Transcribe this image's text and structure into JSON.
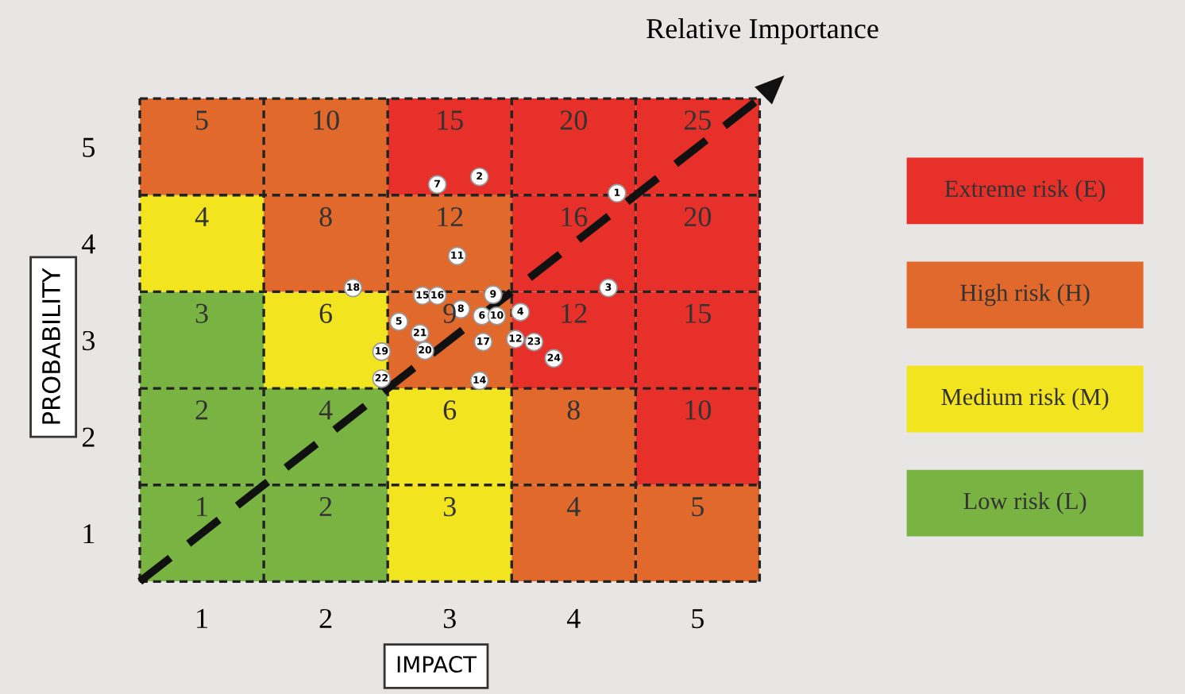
{
  "chart_data": [
    {
      "type": "heatmap",
      "xlabel": "IMPACT",
      "ylabel": "PROBABILITY",
      "categories": [
        "1",
        "2",
        "3",
        "4",
        "5"
      ],
      "y_categories": [
        "5",
        "4",
        "3",
        "2",
        "1"
      ],
      "data_labels": true,
      "grid": false,
      "tick_labels": false,
      "cells": [
        [
          5,
          10,
          15,
          20,
          25
        ],
        [
          4,
          8,
          12,
          16,
          20
        ],
        [
          3,
          6,
          9,
          12,
          15
        ],
        [
          2,
          4,
          6,
          8,
          10
        ],
        [
          1,
          2,
          3,
          4,
          5
        ]
      ],
      "colors": [
        [
          "#e2692c",
          "#e2692c",
          "#e8302a",
          "#e8302a",
          "#e8302a"
        ],
        [
          "#f2e41e",
          "#e2692c",
          "#e2692c",
          "#e8302a",
          "#e8302a"
        ],
        [
          "#79b443",
          "#f2e41e",
          "#e2692c",
          "#e8302a",
          "#e8302a"
        ],
        [
          "#79b443",
          "#79b443",
          "#f2e41e",
          "#e2692c",
          "#e8302a"
        ],
        [
          "#79b443",
          "#79b443",
          "#f2e41e",
          "#e2692c",
          "#e2692c"
        ]
      ]
    },
    {
      "type": "scatter",
      "xlim": [
        0.5,
        5.5
      ],
      "ylim": [
        0.5,
        5.5
      ],
      "xticks": [
        1,
        2,
        3,
        4,
        5
      ],
      "yticks": [
        1,
        2,
        3,
        4,
        5
      ],
      "annotations": [
        "Relative Importance",
        {
          "text": "7",
          "x": 2.9,
          "y": 4.61
        },
        {
          "text": "2",
          "x": 3.24,
          "y": 4.69
        },
        {
          "text": "1",
          "x": 4.35,
          "y": 4.52
        },
        {
          "text": "11",
          "x": 3.06,
          "y": 3.87
        },
        {
          "text": "18",
          "x": 2.22,
          "y": 3.54
        },
        {
          "text": "15",
          "x": 2.78,
          "y": 3.46
        },
        {
          "text": "16",
          "x": 2.9,
          "y": 3.46
        },
        {
          "text": "9",
          "x": 3.35,
          "y": 3.47
        },
        {
          "text": "8",
          "x": 3.09,
          "y": 3.32
        },
        {
          "text": "6",
          "x": 3.26,
          "y": 3.25
        },
        {
          "text": "10",
          "x": 3.38,
          "y": 3.25
        },
        {
          "text": "4",
          "x": 3.57,
          "y": 3.29
        },
        {
          "text": "3",
          "x": 4.28,
          "y": 3.54
        },
        {
          "text": "5",
          "x": 2.59,
          "y": 3.19
        },
        {
          "text": "21",
          "x": 2.76,
          "y": 3.07
        },
        {
          "text": "20",
          "x": 2.8,
          "y": 2.89
        },
        {
          "text": "17",
          "x": 3.27,
          "y": 2.98
        },
        {
          "text": "12",
          "x": 3.53,
          "y": 3.01
        },
        {
          "text": "23",
          "x": 3.68,
          "y": 2.98
        },
        {
          "text": "24",
          "x": 3.84,
          "y": 2.81
        },
        {
          "text": "19",
          "x": 2.45,
          "y": 2.88
        },
        {
          "text": "22",
          "x": 2.45,
          "y": 2.6
        },
        {
          "text": "14",
          "x": 3.24,
          "y": 2.58
        }
      ],
      "series": [
        {
          "type": "line",
          "color": "#111111",
          "line_style": "dashed",
          "marker": "none",
          "x": [
            0.5,
            5.5
          ],
          "values": [
            0.5,
            5.5
          ]
        },
        {
          "type": "scatter",
          "color": "#ffffff",
          "marker": "circle",
          "x": [
            2.9,
            3.24,
            4.35,
            3.06,
            2.22,
            2.78,
            2.9,
            3.35,
            3.09,
            3.26,
            3.38,
            3.57,
            4.28,
            2.59,
            2.76,
            2.8,
            3.27,
            3.53,
            3.68,
            3.84,
            2.45,
            2.45,
            3.24
          ],
          "values": [
            4.61,
            4.69,
            4.52,
            3.87,
            3.54,
            3.46,
            3.46,
            3.47,
            3.32,
            3.25,
            3.25,
            3.29,
            3.54,
            3.19,
            3.07,
            2.89,
            2.98,
            3.01,
            2.98,
            2.81,
            2.88,
            2.6,
            2.58
          ]
        }
      ]
    },
    {
      "type": "other",
      "categories": [
        "Extreme risk (E)",
        "High risk (H)",
        "Medium risk (M)",
        "Low risk (L)"
      ],
      "colors": [
        "#e8302a",
        "#e2692c",
        "#f2e41e",
        "#79b443"
      ]
    }
  ]
}
